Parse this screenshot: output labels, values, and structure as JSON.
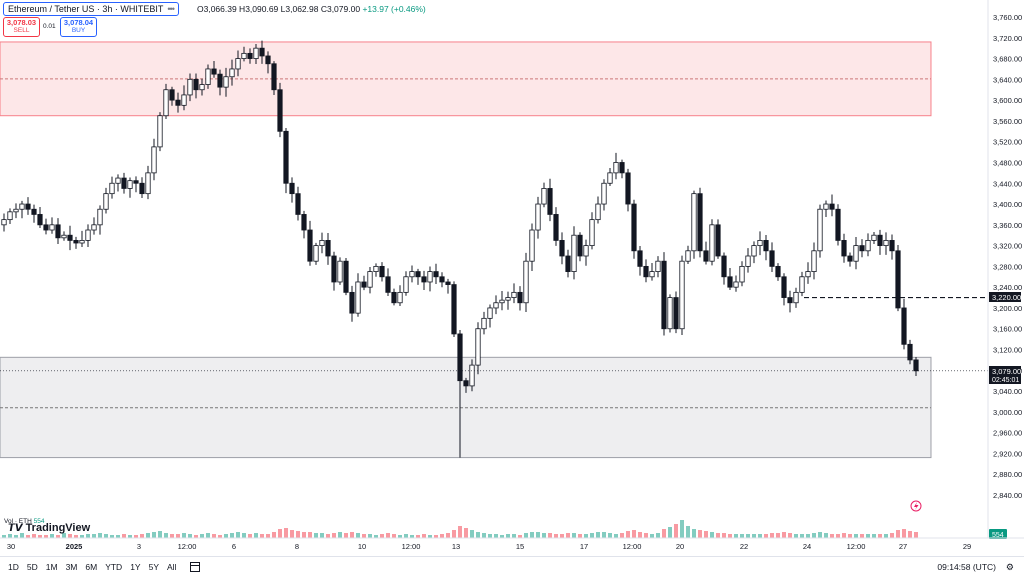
{
  "header": {
    "symbol": "Ethereum / Tether US · 3h · WHITEBIT",
    "ohlc": "O3,066.39 H3,090.69 L3,062.98 C3,079.00",
    "change": "+13.97 (+0.46%)"
  },
  "trade": {
    "sell_price": "3,078.03",
    "sell_label": "SELL",
    "spread": "0.01",
    "buy_price": "3,078.04",
    "buy_label": "BUY"
  },
  "volume": {
    "label": "Vol · ETH",
    "value": "554",
    "axis_badge": "554"
  },
  "price_axis": {
    "ticks": [
      "3,760.00",
      "3,720.00",
      "3,680.00",
      "3,640.00",
      "3,600.00",
      "3,560.00",
      "3,520.00",
      "3,480.00",
      "3,440.00",
      "3,400.00",
      "3,360.00",
      "3,320.00",
      "3,280.00",
      "3,240.00",
      "3,200.00",
      "3,160.00",
      "3,120.00",
      "3,080.00",
      "3,040.00",
      "3,000.00",
      "2,960.00",
      "2,920.00",
      "2,880.00",
      "2,840.00"
    ],
    "current_price": "3,079.00",
    "countdown": "02:45:01",
    "level_label": "3,220.00"
  },
  "time_axis": {
    "labels": [
      "30",
      "2025",
      "3",
      "12:00",
      "6",
      "8",
      "10",
      "12:00",
      "13",
      "15",
      "17",
      "12:00",
      "20",
      "22",
      "24",
      "12:00",
      "27",
      "29"
    ]
  },
  "chart_data": {
    "type": "candlestick",
    "ylim": [
      2800,
      3780
    ],
    "zones": [
      {
        "low": 3570,
        "high": 3712,
        "mid": 3641,
        "color": "#f23645"
      },
      {
        "low": 2912,
        "high": 3105,
        "mid": 3008,
        "color": "#9598a1"
      }
    ],
    "level": 3220,
    "current_price": 3079,
    "closes": [
      3370,
      3385,
      3390,
      3400,
      3390,
      3380,
      3360,
      3350,
      3360,
      3335,
      3340,
      3330,
      3325,
      3330,
      3350,
      3360,
      3390,
      3420,
      3440,
      3450,
      3430,
      3445,
      3440,
      3420,
      3460,
      3510,
      3570,
      3620,
      3600,
      3590,
      3610,
      3640,
      3620,
      3630,
      3660,
      3650,
      3625,
      3645,
      3660,
      3680,
      3690,
      3680,
      3700,
      3685,
      3670,
      3620,
      3540,
      3440,
      3420,
      3380,
      3350,
      3290,
      3320,
      3330,
      3300,
      3250,
      3290,
      3230,
      3190,
      3250,
      3240,
      3270,
      3280,
      3260,
      3230,
      3210,
      3230,
      3260,
      3270,
      3260,
      3250,
      3270,
      3260,
      3250,
      3245,
      3150,
      3060,
      3050,
      3090,
      3160,
      3180,
      3200,
      3210,
      3215,
      3220,
      3230,
      3210,
      3290,
      3350,
      3400,
      3430,
      3380,
      3330,
      3300,
      3270,
      3340,
      3300,
      3320,
      3370,
      3400,
      3440,
      3460,
      3480,
      3460,
      3400,
      3310,
      3280,
      3260,
      3270,
      3290,
      3160,
      3220,
      3160,
      3290,
      3310,
      3420,
      3310,
      3290,
      3360,
      3300,
      3260,
      3240,
      3250,
      3280,
      3300,
      3320,
      3330,
      3310,
      3280,
      3260,
      3220,
      3210,
      3230,
      3260,
      3270,
      3310,
      3390,
      3400,
      3390,
      3330,
      3300,
      3290,
      3320,
      3310,
      3330,
      3340,
      3320,
      3330,
      3310,
      3200,
      3130,
      3100,
      3079
    ],
    "volumes": [
      3,
      4,
      3,
      5,
      3,
      4,
      3,
      3,
      4,
      3,
      5,
      4,
      3,
      3,
      4,
      4,
      5,
      4,
      3,
      3,
      4,
      3,
      3,
      4,
      5,
      6,
      7,
      5,
      4,
      4,
      5,
      4,
      3,
      4,
      5,
      4,
      3,
      4,
      5,
      6,
      5,
      4,
      5,
      4,
      4,
      6,
      9,
      10,
      8,
      7,
      6,
      6,
      5,
      5,
      4,
      5,
      6,
      5,
      6,
      5,
      4,
      4,
      3,
      4,
      5,
      4,
      3,
      4,
      3,
      3,
      4,
      3,
      3,
      4,
      5,
      8,
      12,
      10,
      8,
      6,
      5,
      4,
      4,
      3,
      4,
      4,
      3,
      5,
      6,
      6,
      5,
      5,
      4,
      4,
      5,
      5,
      4,
      4,
      5,
      6,
      6,
      5,
      4,
      5,
      7,
      8,
      6,
      5,
      4,
      5,
      9,
      11,
      14,
      18,
      12,
      9,
      8,
      7,
      6,
      5,
      5,
      4,
      4,
      4,
      4,
      4,
      4,
      4,
      5,
      5,
      6,
      5,
      4,
      4,
      4,
      5,
      6,
      5,
      4,
      4,
      5,
      4,
      4,
      4,
      4,
      4,
      4,
      4,
      5,
      8,
      9,
      7,
      6
    ]
  }
}
